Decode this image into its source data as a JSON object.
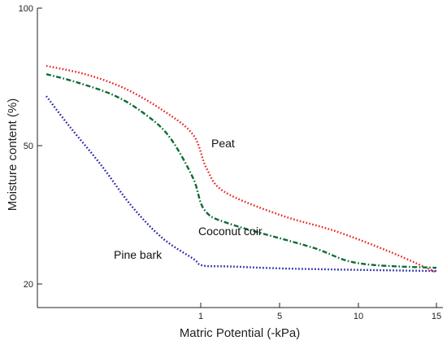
{
  "chart_data": {
    "type": "line",
    "xlabel": "Matric Potential (-kPa)",
    "ylabel": "Moisture content  (%)",
    "x_ticks": [
      "1",
      "5",
      "10",
      "15"
    ],
    "y_ticks": [
      "100",
      "50",
      "20"
    ],
    "grid": false,
    "legend": "none",
    "series": [
      {
        "name": "Peat",
        "color": "#e8201c",
        "dash": "dotted",
        "points": [
          {
            "x": 0.0,
            "y": 79
          },
          {
            "x": 0.25,
            "y": 76
          },
          {
            "x": 0.5,
            "y": 71
          },
          {
            "x": 0.75,
            "y": 63
          },
          {
            "x": 0.95,
            "y": 54
          },
          {
            "x": 1.3,
            "y": 45
          },
          {
            "x": 2.2,
            "y": 40
          },
          {
            "x": 5.0,
            "y": 35
          },
          {
            "x": 8.5,
            "y": 31.5
          },
          {
            "x": 12.0,
            "y": 27
          },
          {
            "x": 15.0,
            "y": 22.5
          }
        ]
      },
      {
        "name": "Coconut coir",
        "color": "#0e6b35",
        "dash": "dashdot",
        "points": [
          {
            "x": 0.0,
            "y": 76
          },
          {
            "x": 0.2,
            "y": 73
          },
          {
            "x": 0.45,
            "y": 68
          },
          {
            "x": 0.65,
            "y": 61
          },
          {
            "x": 0.8,
            "y": 53
          },
          {
            "x": 0.95,
            "y": 43
          },
          {
            "x": 1.2,
            "y": 36
          },
          {
            "x": 2.5,
            "y": 33
          },
          {
            "x": 7.0,
            "y": 28
          },
          {
            "x": 10.0,
            "y": 24.5
          },
          {
            "x": 15.0,
            "y": 23.5
          }
        ]
      },
      {
        "name": "Pine bark",
        "color": "#1c1ca8",
        "dash": "dotted",
        "points": [
          {
            "x": 0.0,
            "y": 68
          },
          {
            "x": 0.15,
            "y": 57
          },
          {
            "x": 0.35,
            "y": 46
          },
          {
            "x": 0.55,
            "y": 37
          },
          {
            "x": 0.75,
            "y": 30
          },
          {
            "x": 0.95,
            "y": 25.5
          },
          {
            "x": 1.1,
            "y": 24
          },
          {
            "x": 2.5,
            "y": 23.8
          },
          {
            "x": 6.0,
            "y": 23.3
          },
          {
            "x": 15.0,
            "y": 22.8
          }
        ]
      }
    ]
  }
}
